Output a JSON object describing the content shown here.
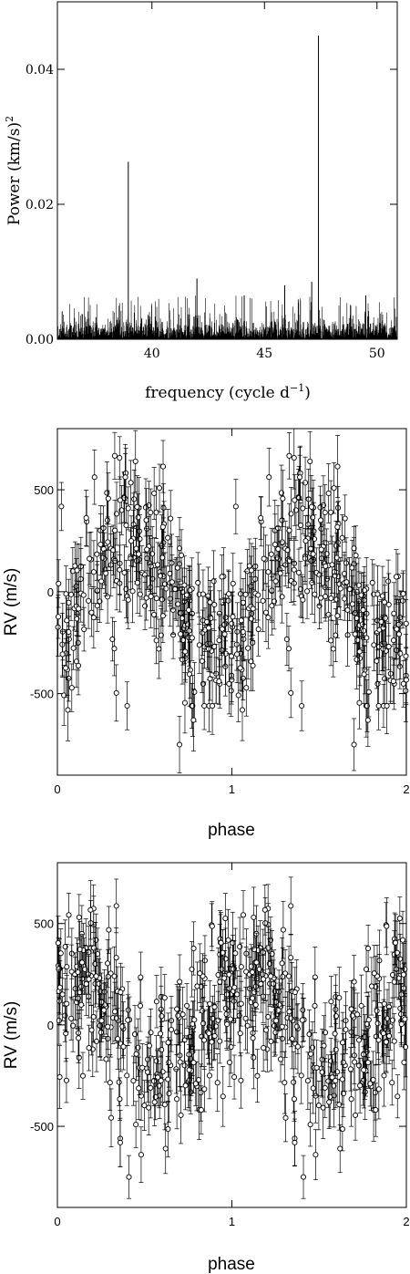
{
  "colors": {
    "ink": "#000000",
    "background": "#ffffff"
  },
  "chart_data": [
    {
      "type": "line",
      "xlabel": "frequency (cycle d",
      "xlabel_sup": "−1",
      "xlabel_close": ")",
      "ylabel": "Power (km/s)",
      "ylabel_sup": "2",
      "xlim": [
        35.8,
        50.9
      ],
      "ylim": [
        0,
        0.05
      ],
      "xticks": [
        40,
        45,
        50
      ],
      "xtick_labels": [
        "40",
        "45",
        "50"
      ],
      "yticks": [
        0,
        0.02,
        0.04
      ],
      "ytick_labels": [
        "0.00",
        "0.02",
        "0.04"
      ],
      "peaks": [
        {
          "x": 38.95,
          "y": 0.0263
        },
        {
          "x": 47.4,
          "y": 0.045
        },
        {
          "x": 42.0,
          "y": 0.009
        },
        {
          "x": 44.1,
          "y": 0.0065
        },
        {
          "x": 45.9,
          "y": 0.008
        },
        {
          "x": 47.1,
          "y": 0.0085
        },
        {
          "x": 49.5,
          "y": 0.0065
        }
      ],
      "noise_level": 0.0028,
      "noise_max": 0.0065
    },
    {
      "type": "scatter",
      "xlabel": "phase",
      "ylabel": "RV (m/s)",
      "xlim": [
        0,
        2
      ],
      "ylim": [
        -900,
        800
      ],
      "xticks": [
        0,
        1,
        2
      ],
      "xtick_labels": [
        "0",
        "1",
        "2"
      ],
      "yticks": [
        -500,
        0,
        500
      ],
      "ytick_labels": [
        "-500",
        "0",
        "500"
      ],
      "amplitude": 250,
      "phase_of_max": 0.42,
      "n_points": 260,
      "scatter_sd": 190,
      "error_bar": 130,
      "low_points": [
        {
          "x": 0.7,
          "y": -750
        },
        {
          "x": 0.78,
          "y": -630
        },
        {
          "x": 0.06,
          "y": -580
        },
        {
          "x": 0.4,
          "y": -560
        }
      ]
    },
    {
      "type": "scatter",
      "xlabel": "phase",
      "ylabel": "RV (m/s)",
      "xlim": [
        0,
        2
      ],
      "ylim": [
        -900,
        800
      ],
      "xticks": [
        0,
        1,
        2
      ],
      "xtick_labels": [
        "0",
        "1",
        "2"
      ],
      "yticks": [
        -500,
        0,
        500
      ],
      "ytick_labels": [
        "-500",
        "0",
        "500"
      ],
      "amplitude": 200,
      "phase_of_max": 0.1,
      "n_points": 260,
      "scatter_sd": 200,
      "error_bar": 130,
      "low_points": [
        {
          "x": 0.41,
          "y": -750
        },
        {
          "x": 0.48,
          "y": -640
        },
        {
          "x": 0.36,
          "y": -580
        },
        {
          "x": 0.62,
          "y": -610
        }
      ]
    }
  ]
}
